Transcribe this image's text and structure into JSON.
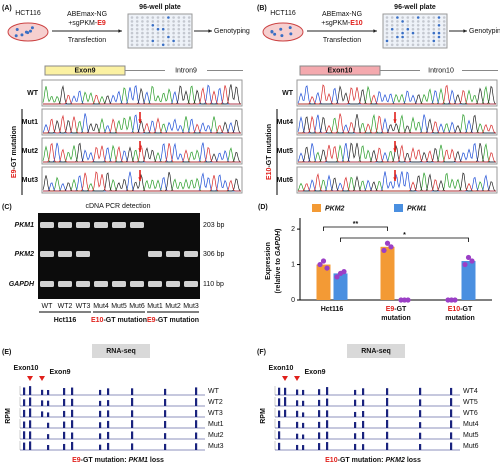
{
  "panel_a": {
    "label": "(A)",
    "cell_line": "HCT116",
    "reagent": "ABEmax-NG",
    "guide": [
      "+sgPKM-",
      "E9"
    ],
    "method": "Transfection",
    "plate": "96-well plate",
    "readout": "Genotyping",
    "exon": "Exon9",
    "intron": "Intron9",
    "rows": [
      "WT",
      "Mut1",
      "Mut2",
      "Mut3"
    ],
    "group": [
      "E9",
      "-GT mutation"
    ]
  },
  "panel_b": {
    "label": "(B)",
    "cell_line": "HCT116",
    "reagent": "ABEmax-NG",
    "guide": [
      "+sgPKM-",
      "E10"
    ],
    "method": "Transfection",
    "plate": "96-well plate",
    "readout": "Genotyping",
    "exon": "Exon10",
    "intron": "Intron10",
    "rows": [
      "WT",
      "Mut4",
      "Mut5",
      "Mut6"
    ],
    "group": [
      "E10",
      "-GT mutation"
    ]
  },
  "panel_c": {
    "label": "(C)",
    "title": "cDNA PCR detection",
    "genes": [
      "PKM1",
      "PKM2",
      "GAPDH"
    ],
    "sizes": [
      "203 bp",
      "306 bp",
      "110 bp"
    ],
    "lanes": [
      "WT",
      "WT2",
      "WT3",
      "Mut4",
      "Mut5",
      "Mut6",
      "Mut1",
      "Mut2",
      "Mut3"
    ],
    "groups": [
      [
        "Hct116"
      ],
      [
        "E10",
        "-GT mutation"
      ],
      [
        "E9",
        "-GT mutation"
      ]
    ]
  },
  "chart_data": {
    "type": "bar",
    "label": "(D)",
    "y_label": "Expression",
    "y_label_2": [
      "(relative to ",
      "GAPDH",
      ")"
    ],
    "categories": [
      [
        "Hct116"
      ],
      [
        "E9",
        "-GT",
        "mutation"
      ],
      [
        "E10",
        "-GT",
        "mutation"
      ]
    ],
    "series": [
      {
        "name": "PKM2",
        "color": "#f39a35",
        "values": [
          1.0,
          1.5,
          0
        ],
        "points": [
          [
            1.0,
            1.1,
            0.9
          ],
          [
            1.4,
            1.6,
            1.5
          ],
          [
            0,
            0,
            0
          ]
        ]
      },
      {
        "name": "PKM1",
        "color": "#4a8fe0",
        "values": [
          0.75,
          0,
          1.1
        ],
        "points": [
          [
            0.65,
            0.75,
            0.8
          ],
          [
            0,
            0,
            0
          ],
          [
            1.0,
            1.2,
            1.1
          ]
        ]
      }
    ],
    "point_color": "#9b3fc6",
    "ylim": [
      0,
      2.2
    ],
    "yticks": [
      0,
      1,
      2
    ],
    "annotations": [
      "**",
      "*"
    ]
  },
  "panel_e": {
    "label": "(E)",
    "method": "RNA-seq",
    "exons": [
      "Exon10",
      "Exon9"
    ],
    "y_label": "RPM",
    "tracks": [
      "WT",
      "WT2",
      "WT3",
      "Mut1",
      "Mut2",
      "Mut3"
    ],
    "caption": [
      "E9",
      "-GT mutation: ",
      "PKM1",
      " loss"
    ]
  },
  "panel_f": {
    "label": "(F)",
    "method": "RNA-seq",
    "exons": [
      "Exon10",
      "Exon9"
    ],
    "y_label": "RPM",
    "tracks": [
      "WT4",
      "WT5",
      "WT6",
      "Mut4",
      "Mut5",
      "Mut6"
    ],
    "caption": [
      "E10",
      "-GT mutation: ",
      "PKM2",
      " loss"
    ]
  }
}
